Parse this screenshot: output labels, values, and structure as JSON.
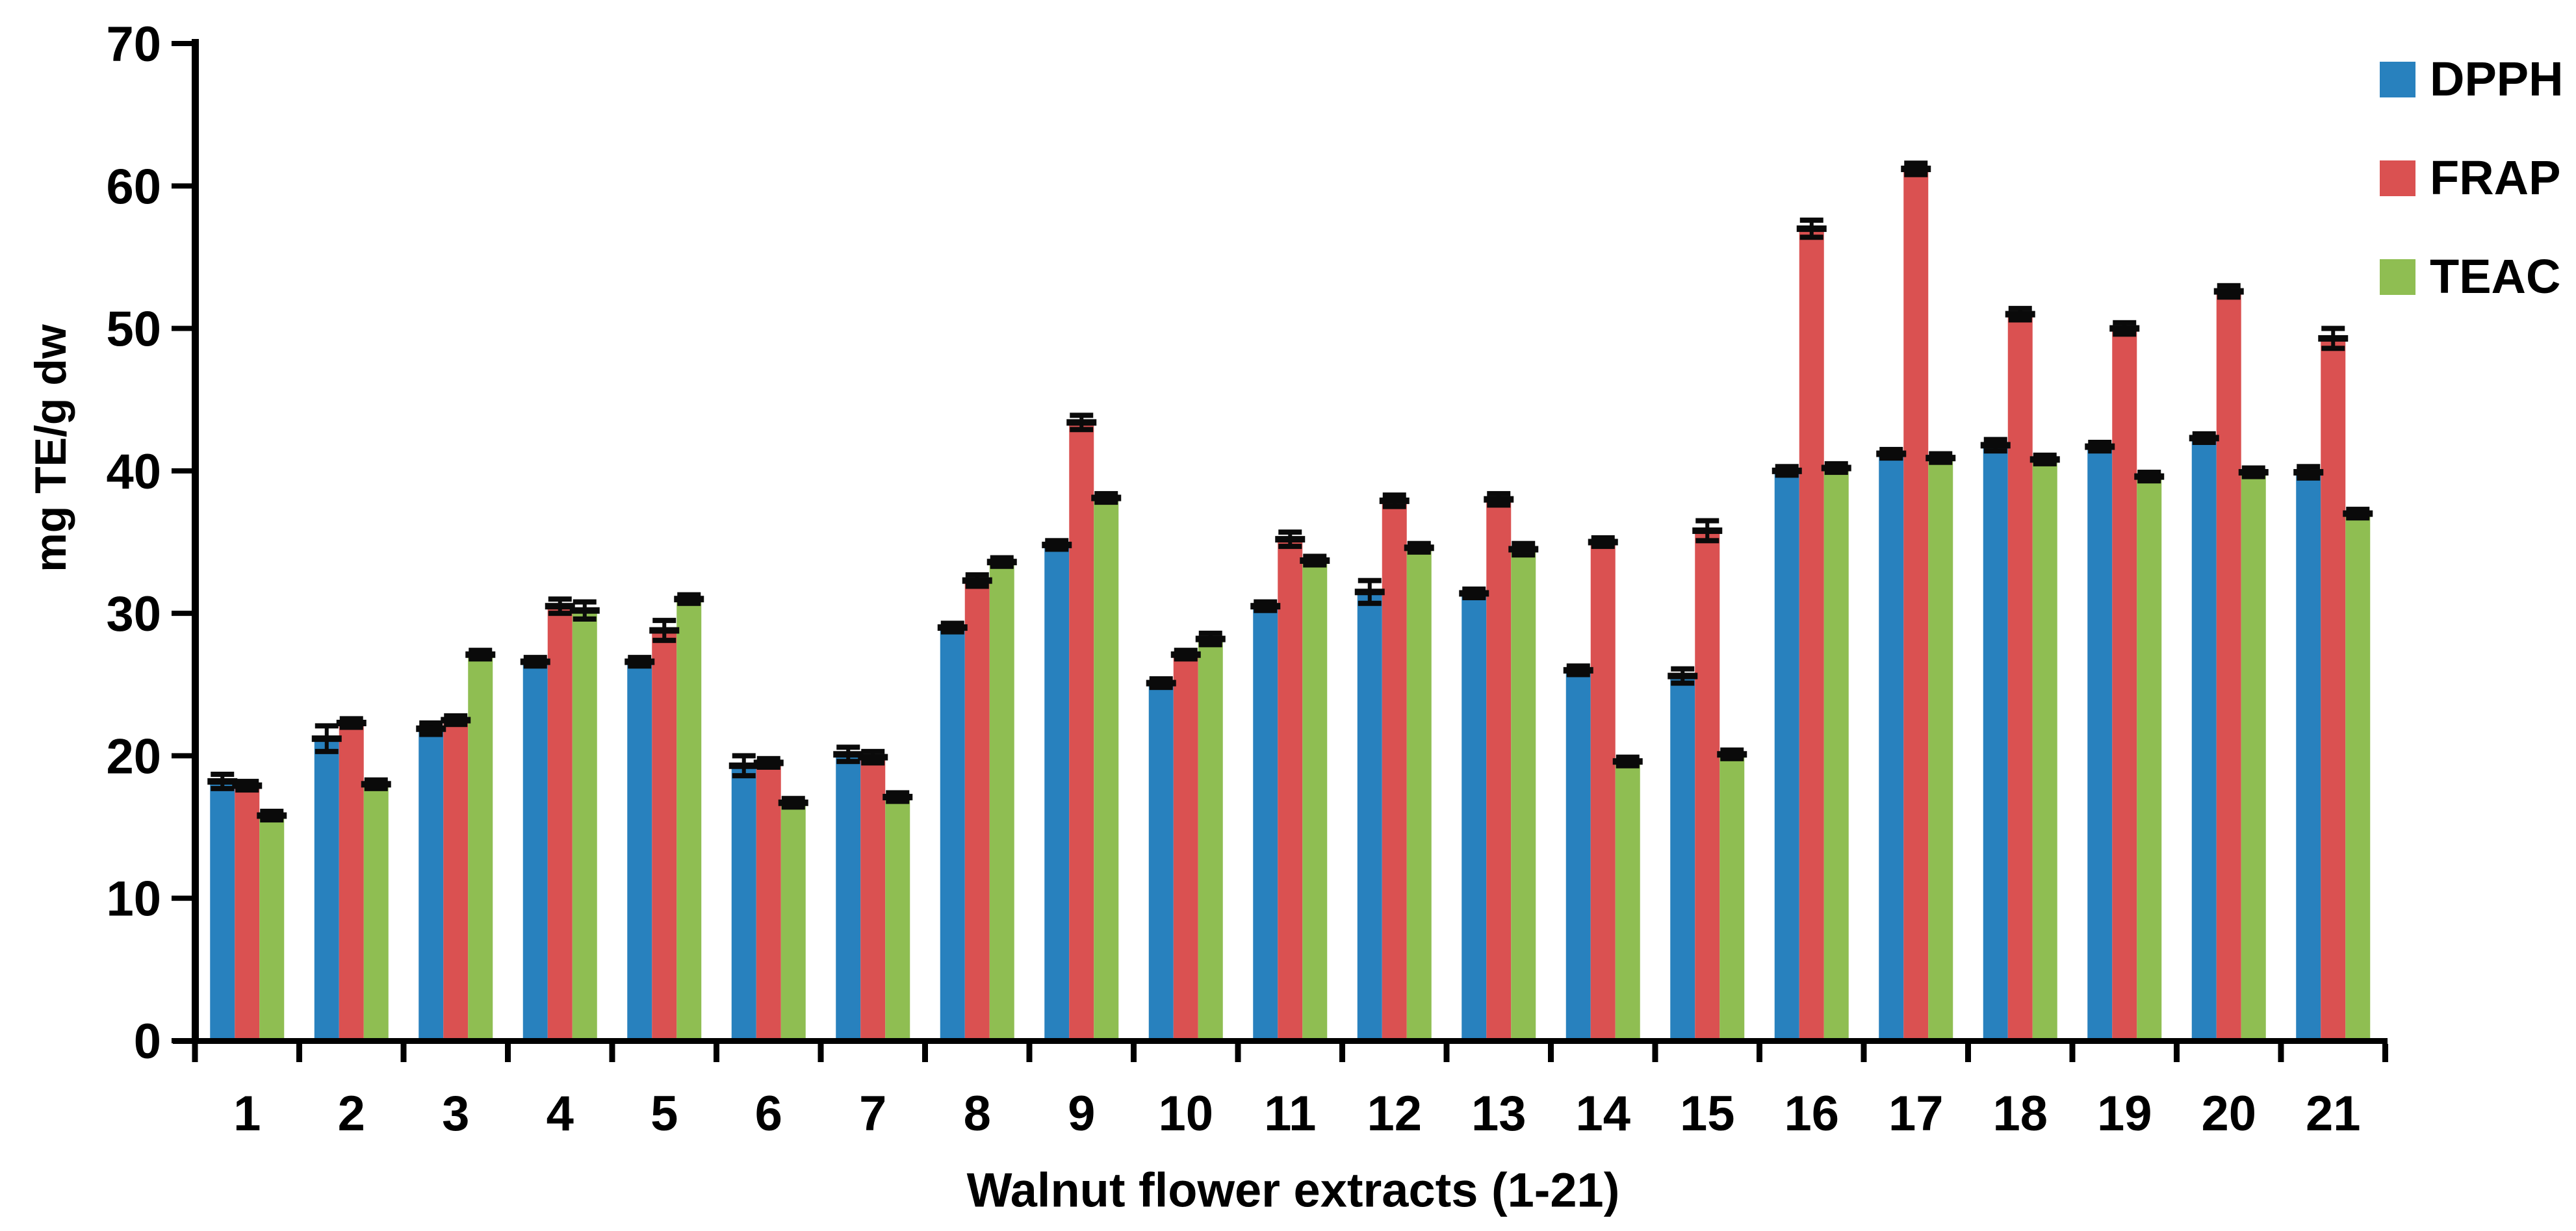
{
  "chart_data": {
    "type": "bar",
    "title": "",
    "xlabel": "Walnut flower extracts (1-21)",
    "ylabel": "mg TE/g dw",
    "ylim": [
      0,
      70
    ],
    "ytick_step": 10,
    "yticks": [
      0,
      10,
      20,
      30,
      40,
      50,
      60,
      70
    ],
    "grid": false,
    "legend_position": "top-right",
    "error_bars": true,
    "categories": [
      "1",
      "2",
      "3",
      "4",
      "5",
      "6",
      "7",
      "8",
      "9",
      "10",
      "11",
      "12",
      "13",
      "14",
      "15",
      "16",
      "17",
      "18",
      "19",
      "20",
      "21"
    ],
    "series": [
      {
        "name": "DPPH",
        "color": "#2881BE",
        "values": [
          18.2,
          21.2,
          21.9,
          26.6,
          26.6,
          19.3,
          20.1,
          29.0,
          34.8,
          25.1,
          30.5,
          31.5,
          31.4,
          26.0,
          25.6,
          40.0,
          41.2,
          41.8,
          41.7,
          42.3,
          39.9
        ],
        "errors": [
          0.5,
          0.9,
          0.4,
          0.3,
          0.3,
          0.7,
          0.5,
          0.3,
          0.3,
          0.3,
          0.3,
          0.8,
          0.3,
          0.3,
          0.5,
          0.3,
          0.3,
          0.4,
          0.3,
          0.3,
          0.4
        ]
      },
      {
        "name": "FRAP",
        "color": "#DA5151",
        "values": [
          17.9,
          22.3,
          22.5,
          30.5,
          28.8,
          19.5,
          19.9,
          32.3,
          43.4,
          27.1,
          35.2,
          37.9,
          38.0,
          35.0,
          35.8,
          57.0,
          61.2,
          51.0,
          50.0,
          52.6,
          49.3
        ],
        "errors": [
          0.3,
          0.3,
          0.3,
          0.5,
          0.7,
          0.3,
          0.4,
          0.4,
          0.5,
          0.3,
          0.5,
          0.4,
          0.4,
          0.3,
          0.7,
          0.6,
          0.4,
          0.4,
          0.4,
          0.4,
          0.7
        ]
      },
      {
        "name": "TEAC",
        "color": "#8FBE52",
        "values": [
          15.8,
          18.0,
          27.1,
          30.2,
          31.0,
          16.7,
          17.1,
          33.6,
          38.1,
          28.2,
          33.7,
          34.6,
          34.5,
          19.6,
          20.1,
          40.2,
          40.9,
          40.8,
          39.6,
          39.9,
          37.0
        ],
        "errors": [
          0.3,
          0.3,
          0.3,
          0.6,
          0.3,
          0.3,
          0.3,
          0.3,
          0.3,
          0.4,
          0.3,
          0.3,
          0.4,
          0.3,
          0.3,
          0.3,
          0.3,
          0.3,
          0.3,
          0.3,
          0.3
        ]
      }
    ]
  },
  "colors": {
    "axis": "#000000",
    "error_bar": "#0a0a0a",
    "background": "#ffffff",
    "text": "#000000"
  }
}
